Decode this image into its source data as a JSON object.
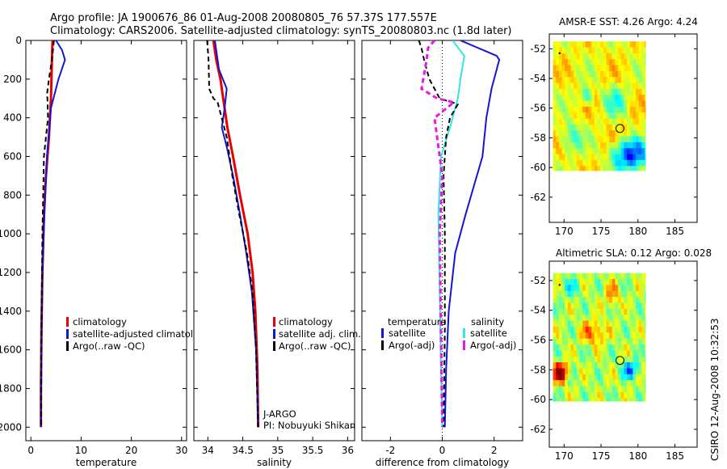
{
  "header": {
    "line1": "Argo profile: JA 1900676_86 01-Aug-2008 20080805_76 57.37S 177.557E",
    "line2": "Climatology: CARS2006. Satellite-adjusted climatology: synTS_20080803.nc (1.8d later)"
  },
  "side_label": "CSIRO 12-Aug-2008 10:32:53",
  "colors": {
    "climatology": "#e60000",
    "satellite": "#1414d2",
    "argo": "#000000",
    "cyan": "#33e6e6",
    "magenta": "#e619e6"
  },
  "chart_data": [
    {
      "type": "line",
      "id": "temperature",
      "xlabel": "temperature",
      "xlim": [
        -1,
        31
      ],
      "xticks": [
        "0",
        "10",
        "20",
        "30"
      ],
      "ylim": [
        0,
        2070
      ],
      "yticks": [
        "0",
        "200",
        "400",
        "600",
        "800",
        "1000",
        "1200",
        "1400",
        "1600",
        "1800",
        "2000"
      ],
      "series": [
        {
          "name": "climatology",
          "color": "#e60000",
          "width": 3,
          "dash": "",
          "x": [
            4.3,
            4.2,
            4.0,
            3.6,
            3.0,
            2.6,
            2.3,
            2.1,
            2.0,
            2.0
          ],
          "y": [
            0,
            100,
            300,
            500,
            700,
            900,
            1200,
            1500,
            1800,
            2000
          ]
        },
        {
          "name": "satellite-adjusted climatology",
          "color": "#1414d2",
          "width": 2,
          "dash": "",
          "x": [
            5.0,
            6.2,
            6.8,
            5.5,
            4.0,
            3.2,
            2.7,
            2.3,
            2.1,
            2.0
          ],
          "y": [
            0,
            50,
            100,
            200,
            350,
            600,
            900,
            1200,
            1600,
            2000
          ]
        },
        {
          "name": "Argo(..raw -QC)",
          "color": "#000000",
          "width": 2,
          "dash": "6,4",
          "x": [
            4.6,
            4.2,
            3.6,
            3.2,
            3.3,
            3.4,
            2.6,
            2.3,
            2.1,
            2.0
          ],
          "y": [
            0,
            100,
            200,
            280,
            300,
            400,
            600,
            1000,
            1500,
            2000
          ]
        }
      ]
    },
    {
      "type": "line",
      "id": "salinity",
      "xlabel": "salinity",
      "xlim": [
        33.8,
        36.1
      ],
      "xticks": [
        "34",
        "34.5",
        "35",
        "35.5",
        "36"
      ],
      "ylim": [
        0,
        2070
      ],
      "series": [
        {
          "name": "climatology",
          "color": "#e60000",
          "width": 3,
          "dash": "",
          "x": [
            34.08,
            34.12,
            34.18,
            34.22,
            34.28,
            34.36,
            34.46,
            34.57,
            34.64,
            34.68,
            34.71,
            34.72
          ],
          "y": [
            0,
            100,
            200,
            300,
            450,
            600,
            800,
            1000,
            1200,
            1400,
            1700,
            2000
          ]
        },
        {
          "name": "satellite adj. clim.",
          "color": "#1414d2",
          "width": 2,
          "dash": "",
          "x": [
            34.1,
            34.12,
            34.16,
            34.27,
            34.24,
            34.2,
            34.27,
            34.36,
            34.46,
            34.55,
            34.63,
            34.69,
            34.72
          ],
          "y": [
            0,
            50,
            150,
            250,
            350,
            450,
            550,
            700,
            900,
            1100,
            1300,
            1600,
            2000
          ]
        },
        {
          "name": "Argo(..raw -QC)",
          "color": "#000000",
          "width": 2,
          "dash": "6,4",
          "x": [
            33.99,
            34.01,
            34.02,
            34.08,
            34.14,
            34.27,
            34.35,
            34.45,
            34.56,
            34.64,
            34.69,
            34.72
          ],
          "y": [
            0,
            100,
            250,
            300,
            320,
            500,
            700,
            900,
            1100,
            1300,
            1600,
            2000
          ]
        }
      ]
    },
    {
      "type": "line",
      "id": "difference",
      "xlabel": "difference from climatology",
      "xlim": [
        -3.1,
        3.1
      ],
      "xticks": [
        "-2",
        "0",
        "2"
      ],
      "ylim": [
        0,
        2070
      ],
      "zero_line": true,
      "series": [
        {
          "name": "temperature satellite",
          "color": "#1414d2",
          "width": 2,
          "dash": "",
          "x": [
            0.7,
            2.1,
            2.2,
            1.9,
            1.7,
            1.55,
            0.9,
            0.5,
            0.25,
            0.15,
            0.1
          ],
          "y": [
            0,
            80,
            100,
            250,
            400,
            600,
            900,
            1100,
            1400,
            1700,
            2000
          ]
        },
        {
          "name": "salinity satellite",
          "color": "#33e6e6",
          "width": 2,
          "dash": "",
          "x": [
            0.4,
            0.85,
            0.7,
            0.6,
            0.3,
            -0.05,
            -0.15,
            -0.1,
            -0.05,
            0.0
          ],
          "y": [
            0,
            80,
            200,
            300,
            450,
            600,
            900,
            1300,
            1700,
            2000
          ]
        },
        {
          "name": "temperature Argo(-adj)",
          "color": "#000000",
          "width": 2,
          "dash": "6,4",
          "x": [
            -0.9,
            -0.8,
            -0.7,
            -0.5,
            -0.1,
            0.6,
            0.3,
            0.15,
            0.05,
            0.1,
            0.1,
            0.05
          ],
          "y": [
            0,
            40,
            100,
            200,
            300,
            330,
            400,
            500,
            700,
            1000,
            1500,
            2000
          ]
        },
        {
          "name": "salinity Argo(-adj)",
          "color": "#e619e6",
          "width": 3,
          "dash": "6,4",
          "x": [
            -0.3,
            -0.55,
            -0.6,
            -0.8,
            -0.2,
            0.45,
            -0.3,
            -0.2,
            0.0,
            -0.1,
            -0.05,
            0.0
          ],
          "y": [
            0,
            40,
            100,
            250,
            300,
            320,
            400,
            500,
            700,
            1000,
            1500,
            2000
          ]
        }
      ]
    },
    {
      "type": "heatmap",
      "id": "sst_map",
      "title": "AMSR-E SST: 4.26 Argo: 4.24",
      "xlim": [
        168,
        188
      ],
      "ylim": [
        -64,
        -51
      ],
      "xticks": [
        170,
        175,
        180,
        185
      ],
      "yticks": [
        -52,
        -54,
        -56,
        -58,
        -60,
        -62
      ],
      "grid_extent": {
        "lon": [
          168.5,
          181
        ],
        "lat": [
          -60.2,
          -51.5
        ]
      },
      "rows": [
        "yyyyyyyyyyyyyyyyyyyyyyyyyyyyyyy",
        "yyyyyyyyyyyyyyyyyyyyyyyyyyyyyyy",
        "yyyyyyyyyyyyyyyyyyyyyyyyyyyyyyy",
        "yyyyyyyyyyyyyyyyyyyyyyyyyyyyyyy",
        "yyyyyyyyyyyyyyyyyyyyyyyyyyyyyyy",
        "yyyyyyyyyyyyyyyyyyyyyyyyyyyyyyy",
        "yyyyyyyyyyyyyyyyyyyyyyyyyyyyyyy",
        "yyyyyyyyyyyyyyyyyyyyyyyyyyyyyyy",
        "yyyyyyyyyyyyyyyyyyyyyyyyyyyyyyy",
        "yyyyyyyyyyyyyyyyyyyyyyyyyyyyyyy",
        "yyyyyyyyyyyyyyyyyyyyyyyyyyyyyyy",
        "yyyyyyyyyyyyyyyyyyyyyyyyyyyyyyy",
        "yyyyyyyyyyyyyyyyyyyyyyyyyyyyyyy",
        "yyyyyyyyyyyyyyyyyyyyyyyyyyyyyyy",
        "yyyyyyyyyyyyyyyyyyyyyyyyyyyyyyy",
        "yyyyyyyyyyyyyyyyyyyyyyyyyyyyyyy",
        "yyyyyyyyyyyyyyyyyyyyyyyyyyyyyyy",
        "yyyyyyyyyyyyyyyyyyyyyyyyyyyyyyy",
        "yyyyyyyyyyyyyyyyyyyyyyyyyyyyyyy",
        "yyyyyyyyyyyyyyyyyyyyyyyyyyyyyyy",
        "yyyyyyyyyyyyyyyyyyyyyyyyyyyyyyy",
        "yyyyyyyyyyyyyyyyyyyyyyyyyyyyyyy"
      ],
      "palette": {
        "y": "#e6e619"
      },
      "field": "sst",
      "marker": {
        "lon": 177.557,
        "lat": -57.37
      }
    },
    {
      "type": "heatmap",
      "id": "sla_map",
      "title": "Altimetric SLA: 0.12 Argo: 0.028",
      "xlim": [
        168,
        188
      ],
      "ylim": [
        -63,
        -51
      ],
      "xticks": [
        170,
        175,
        180,
        185
      ],
      "yticks": [
        -52,
        -54,
        -56,
        -58,
        -60,
        -62
      ],
      "grid_extent": {
        "lon": [
          168.5,
          181
        ],
        "lat": [
          -60.1,
          -51.5
        ]
      },
      "field": "sla",
      "marker": {
        "lon": 177.557,
        "lat": -57.37
      }
    }
  ],
  "legends": {
    "temperature": [
      "climatology",
      "satellite-adjusted climatology",
      "Argo(..raw -QC)"
    ],
    "salinity": [
      "climatology",
      "satellite adj. clim.",
      "Argo(..raw -QC)"
    ],
    "difference": {
      "headers": [
        "temperature",
        "salinity"
      ],
      "left": [
        "satellite",
        "Argo(-adj)"
      ],
      "right": [
        "satellite",
        "Argo(-adj)"
      ]
    }
  },
  "credits": {
    "line1": "J-ARGO",
    "line2": "PI: Nobuyuki Shikama"
  }
}
